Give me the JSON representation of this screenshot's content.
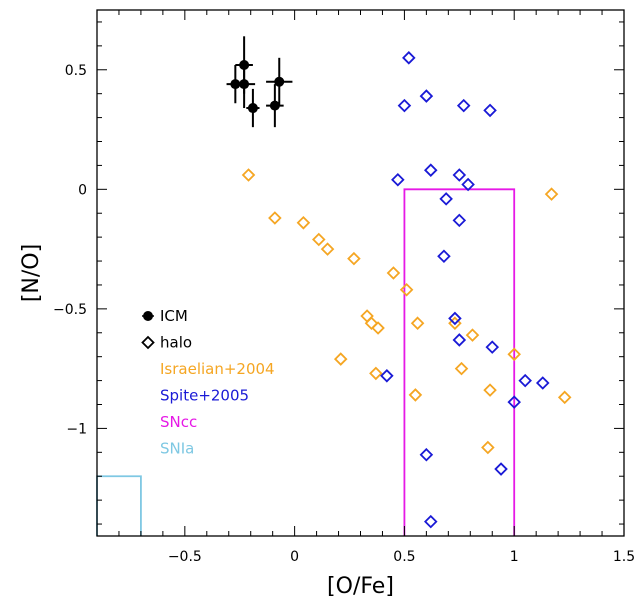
{
  "chart_data": {
    "type": "scatter",
    "xlabel": "[O/Fe]",
    "ylabel": "[N/O]",
    "xlim": [
      -0.9,
      1.5
    ],
    "ylim": [
      -1.45,
      0.75
    ],
    "xticks": [
      -0.5,
      0,
      0.5,
      1,
      1.5
    ],
    "xtick_labels": [
      "−0.5",
      "0",
      "0.5",
      "1",
      "1.5"
    ],
    "yticks": [
      -1,
      -0.5,
      0,
      0.5
    ],
    "ytick_labels": [
      "−1",
      "−0.5",
      "0",
      "0.5"
    ],
    "grid": false,
    "legend": {
      "position": "lower-left",
      "entries": [
        {
          "label": "ICM",
          "marker": "filled-circle",
          "color": "#000000"
        },
        {
          "label": "halo",
          "marker": "open-diamond",
          "color": "#000000"
        },
        {
          "label": "Israelian+2004",
          "marker": "none",
          "color": "#f5a623"
        },
        {
          "label": "Spite+2005",
          "marker": "none",
          "color": "#1a1ad6"
        },
        {
          "label": "SNcc",
          "marker": "none",
          "color": "#e619e6"
        },
        {
          "label": "SNIa",
          "marker": "none",
          "color": "#7ec8e3"
        }
      ]
    },
    "series": [
      {
        "name": "ICM",
        "marker": "filled-circle",
        "color": "#000000",
        "points": [
          {
            "x": -0.27,
            "y": 0.44,
            "xerr": 0.04,
            "yerr": 0.08
          },
          {
            "x": -0.23,
            "y": 0.52,
            "xerr": 0.04,
            "yerr": 0.12
          },
          {
            "x": -0.23,
            "y": 0.44,
            "xerr": 0.05,
            "yerr": 0.1
          },
          {
            "x": -0.19,
            "y": 0.34,
            "xerr": 0.03,
            "yerr": 0.08
          },
          {
            "x": -0.09,
            "y": 0.35,
            "xerr": 0.04,
            "yerr": 0.09
          },
          {
            "x": -0.07,
            "y": 0.45,
            "xerr": 0.06,
            "yerr": 0.1
          }
        ]
      },
      {
        "name": "Israelian+2004",
        "marker": "open-diamond",
        "color": "#f5a623",
        "points": [
          {
            "x": -0.21,
            "y": 0.06
          },
          {
            "x": -0.09,
            "y": -0.12
          },
          {
            "x": 0.04,
            "y": -0.14
          },
          {
            "x": 0.11,
            "y": -0.21
          },
          {
            "x": 0.15,
            "y": -0.25
          },
          {
            "x": 0.27,
            "y": -0.29
          },
          {
            "x": 0.45,
            "y": -0.35
          },
          {
            "x": 0.51,
            "y": -0.42
          },
          {
            "x": 0.21,
            "y": -0.71
          },
          {
            "x": 0.33,
            "y": -0.53
          },
          {
            "x": 0.35,
            "y": -0.56
          },
          {
            "x": 0.38,
            "y": -0.58
          },
          {
            "x": 0.37,
            "y": -0.77
          },
          {
            "x": 0.56,
            "y": -0.56
          },
          {
            "x": 0.55,
            "y": -0.86
          },
          {
            "x": 0.73,
            "y": -0.56
          },
          {
            "x": 0.76,
            "y": -0.75
          },
          {
            "x": 0.81,
            "y": -0.61
          },
          {
            "x": 0.89,
            "y": -0.84
          },
          {
            "x": 0.88,
            "y": -1.08
          },
          {
            "x": 1.0,
            "y": -0.69
          },
          {
            "x": 1.17,
            "y": -0.02
          },
          {
            "x": 1.23,
            "y": -0.87
          }
        ]
      },
      {
        "name": "Spite+2005",
        "marker": "open-diamond",
        "color": "#1a1ad6",
        "points": [
          {
            "x": 0.52,
            "y": 0.55
          },
          {
            "x": 0.5,
            "y": 0.35
          },
          {
            "x": 0.6,
            "y": 0.39
          },
          {
            "x": 0.77,
            "y": 0.35
          },
          {
            "x": 0.89,
            "y": 0.33
          },
          {
            "x": 0.47,
            "y": 0.04
          },
          {
            "x": 0.62,
            "y": 0.08
          },
          {
            "x": 0.75,
            "y": 0.06
          },
          {
            "x": 0.79,
            "y": 0.02
          },
          {
            "x": 0.69,
            "y": -0.04
          },
          {
            "x": 0.75,
            "y": -0.13
          },
          {
            "x": 0.68,
            "y": -0.28
          },
          {
            "x": 0.73,
            "y": -0.54
          },
          {
            "x": 0.75,
            "y": -0.63
          },
          {
            "x": 0.9,
            "y": -0.66
          },
          {
            "x": 0.42,
            "y": -0.78
          },
          {
            "x": 1.05,
            "y": -0.8
          },
          {
            "x": 1.13,
            "y": -0.81
          },
          {
            "x": 1.0,
            "y": -0.89
          },
          {
            "x": 0.6,
            "y": -1.11
          },
          {
            "x": 0.94,
            "y": -1.17
          },
          {
            "x": 0.62,
            "y": -1.39
          }
        ]
      }
    ],
    "regions": [
      {
        "name": "SNcc",
        "color": "#e619e6",
        "x_range": [
          0.5,
          1.0
        ],
        "y_range": [
          -1.45,
          0.0
        ]
      },
      {
        "name": "SNIa",
        "color": "#7ec8e3",
        "x_range": [
          -0.9,
          -0.7
        ],
        "y_range": [
          -1.45,
          -1.2
        ]
      }
    ]
  }
}
